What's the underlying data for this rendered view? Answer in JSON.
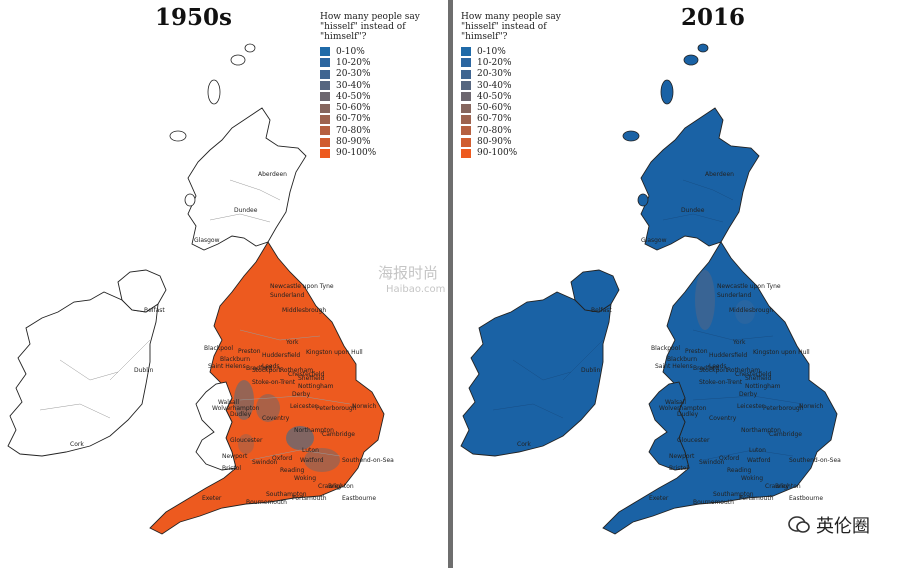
{
  "maps": [
    {
      "title": "1950s",
      "legend_title": "How many people say \"hisself\" instead of \"himself\"?",
      "base_color": "#ed5a1f"
    },
    {
      "title": "2016",
      "legend_title": "How many people say \"hisself\" instead of \"himself\"?",
      "base_color": "#1a62a5"
    }
  ],
  "legend": [
    {
      "label": "0-10%",
      "color": "#1f6aa8"
    },
    {
      "label": "10-20%",
      "color": "#2c66a0"
    },
    {
      "label": "20-30%",
      "color": "#3f6591"
    },
    {
      "label": "30-40%",
      "color": "#566680"
    },
    {
      "label": "40-50%",
      "color": "#6d676f"
    },
    {
      "label": "50-60%",
      "color": "#86665e"
    },
    {
      "label": "60-70%",
      "color": "#9d634f"
    },
    {
      "label": "70-80%",
      "color": "#b66040"
    },
    {
      "label": "80-90%",
      "color": "#d05d30"
    },
    {
      "label": "90-100%",
      "color": "#ed5a1f"
    }
  ],
  "cities": [
    "Aberdeen",
    "Dundee",
    "Glasgow",
    "Belfast",
    "Dublin",
    "Cork",
    "Newcastle upon Tyne",
    "Sunderland",
    "Middlesbrough",
    "York",
    "Kingston upon Hull",
    "Blackpool",
    "Preston",
    "Blackburn",
    "Bradford",
    "Leeds",
    "Huddersfield",
    "Saint Helens",
    "Stockport",
    "Rotherham",
    "Sheffield",
    "Stoke-on-Trent",
    "Chesterfield",
    "Derby",
    "Nottingham",
    "Wolverhampton",
    "Walsall",
    "Dudley",
    "Leicester",
    "Peterborough",
    "Norwich",
    "Coventry",
    "Northampton",
    "Cambridge",
    "Gloucester",
    "Swindon",
    "Oxford",
    "Luton",
    "Watford",
    "Reading",
    "Woking",
    "Southend-on-Sea",
    "Newport",
    "Bristol",
    "Exeter",
    "Southampton",
    "Bournemouth",
    "Portsmouth",
    "Crawley",
    "Brighton",
    "Eastbourne"
  ],
  "watermarks": {
    "center_cn": "海报时尚",
    "center_en": "Haibao.com",
    "logo_text": "英伦圈"
  }
}
